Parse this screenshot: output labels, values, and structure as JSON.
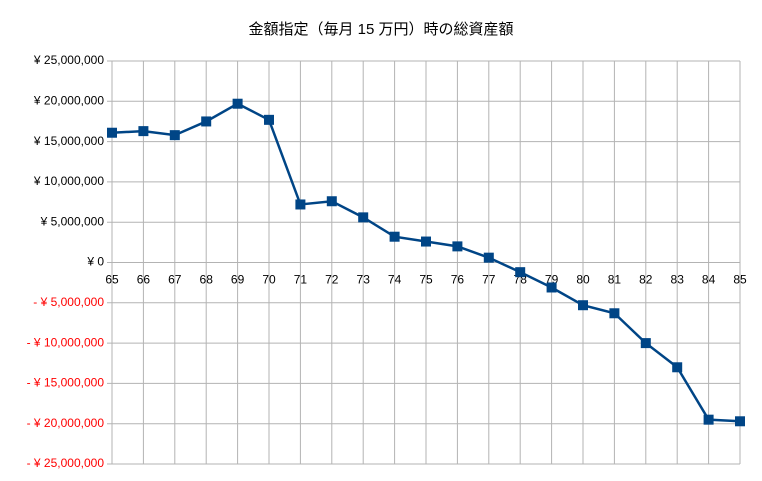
{
  "chart_data": {
    "type": "line",
    "title": "金額指定（毎月 15 万円）時の総資産額",
    "categories": [
      "65",
      "66",
      "67",
      "68",
      "69",
      "70",
      "71",
      "72",
      "73",
      "74",
      "75",
      "76",
      "77",
      "78",
      "79",
      "80",
      "81",
      "82",
      "83",
      "84",
      "85"
    ],
    "series": [
      {
        "name": "総資産額",
        "color": "#004586",
        "values": [
          16100000,
          16300000,
          15800000,
          17500000,
          19700000,
          17700000,
          7200000,
          7600000,
          5600000,
          3200000,
          2600000,
          2000000,
          600000,
          -1200000,
          -3100000,
          -5300000,
          -6300000,
          -10000000,
          -13000000,
          -19500000,
          -19700000
        ]
      }
    ],
    "ylim": [
      -25000000,
      25000000
    ],
    "yticks": [
      {
        "value": 25000000,
        "label": "¥ 25,000,000"
      },
      {
        "value": 20000000,
        "label": "¥ 20,000,000"
      },
      {
        "value": 15000000,
        "label": "¥ 15,000,000"
      },
      {
        "value": 10000000,
        "label": "¥ 10,000,000"
      },
      {
        "value": 5000000,
        "label": "¥ 5,000,000"
      },
      {
        "value": 0,
        "label": "¥ 0"
      },
      {
        "value": -5000000,
        "label": "- ¥ 5,000,000"
      },
      {
        "value": -10000000,
        "label": "- ¥ 10,000,000"
      },
      {
        "value": -15000000,
        "label": "- ¥ 15,000,000"
      },
      {
        "value": -20000000,
        "label": "- ¥ 20,000,000"
      },
      {
        "value": -25000000,
        "label": "- ¥ 25,000,000"
      }
    ],
    "negative_tick_color": "#ff0000",
    "grid": true
  }
}
